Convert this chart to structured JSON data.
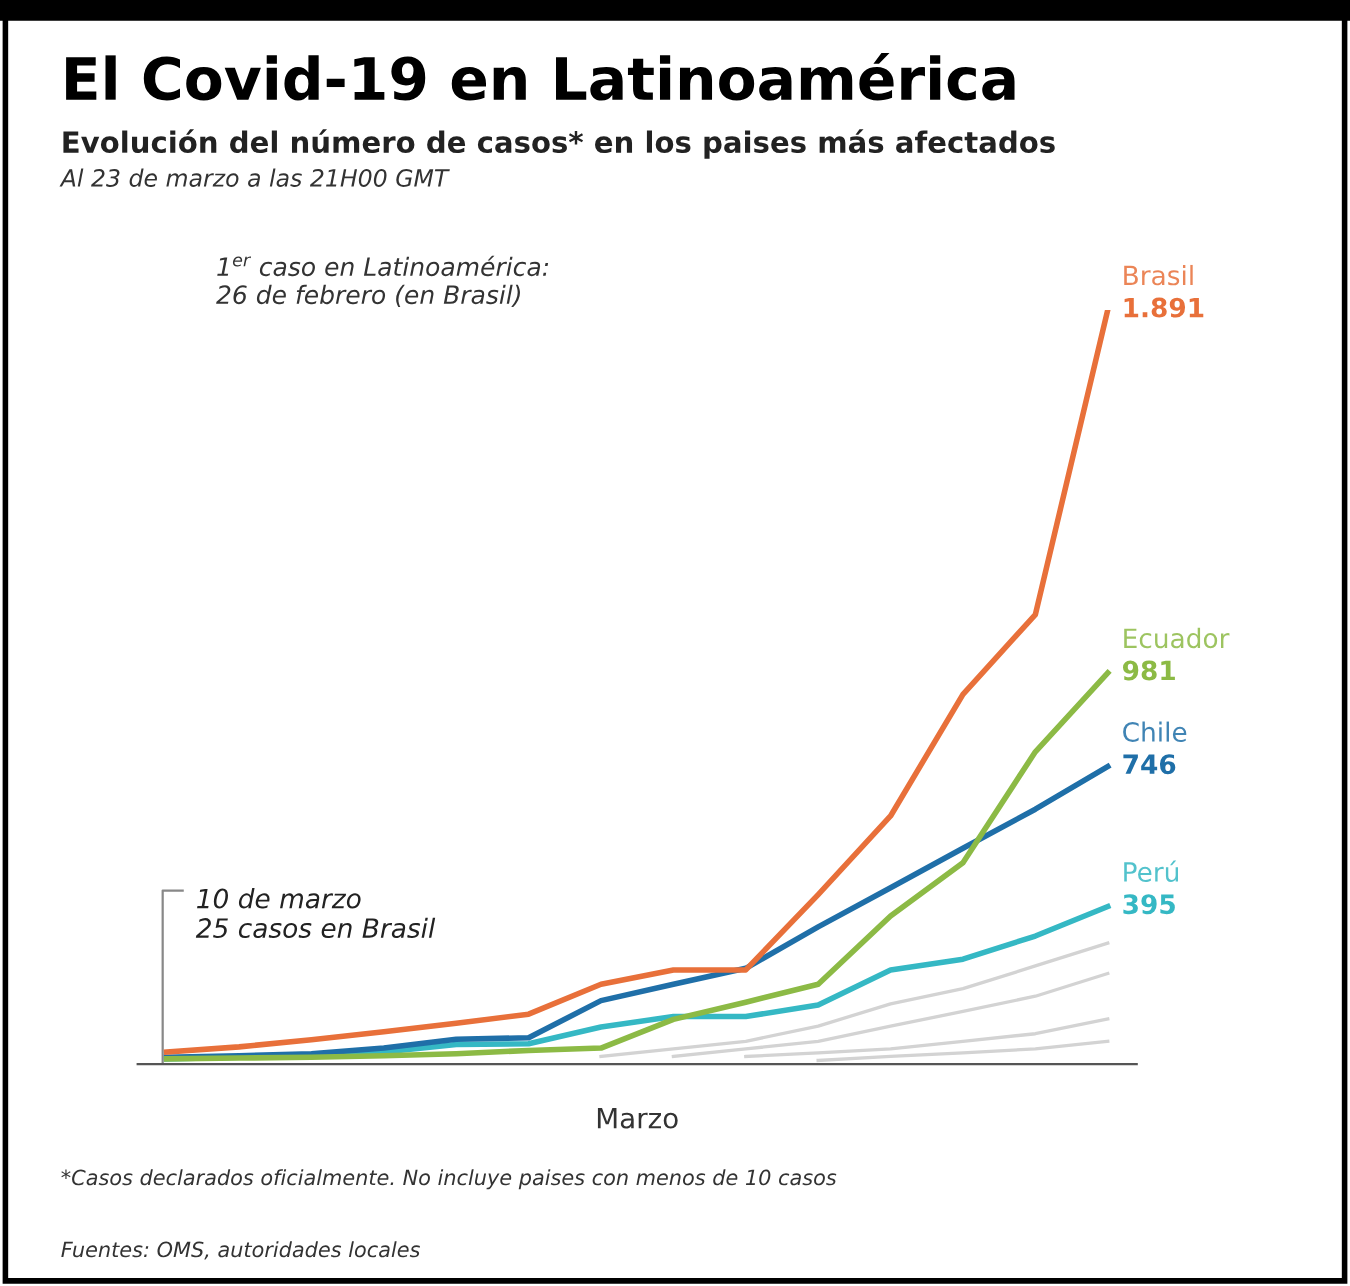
{
  "chart_data": {
    "type": "line",
    "title": "El Covid-19 en Latinoamérica",
    "subtitle": "Evolución del número de casos* en los paises más afectados",
    "xlabel": "Marzo",
    "categories": [
      null,
      null,
      null,
      null,
      null,
      null,
      null,
      null,
      null,
      null,
      null,
      null,
      null,
      null
    ],
    "series": [
      {
        "name": "Brasil",
        "color": "#e8703a",
        "values": [
          30,
          43,
          61,
          81,
          102,
          125,
          200,
          236,
          236,
          425,
          622,
          927,
          1127,
          1891
        ],
        "value_labels": [
          null,
          null,
          null,
          null,
          null,
          null,
          null,
          null,
          null,
          null,
          null,
          null,
          null,
          "1.891"
        ]
      },
      {
        "name": "Ecuador",
        "color": "#8cba45",
        "values": [
          13,
          15,
          17,
          21,
          26,
          34,
          40,
          112,
          155,
          200,
          371,
          505,
          783,
          981
        ],
        "value_labels": [
          null,
          null,
          null,
          null,
          null,
          null,
          null,
          null,
          null,
          null,
          null,
          null,
          null,
          "981"
        ]
      },
      {
        "name": "Chile",
        "color": "#1f6fa8",
        "values": [
          17,
          21,
          26,
          40,
          62,
          66,
          159,
          200,
          240,
          344,
          442,
          541,
          639,
          746
        ],
        "value_labels": [
          null,
          null,
          null,
          null,
          null,
          null,
          null,
          null,
          null,
          null,
          null,
          null,
          null,
          "746"
        ]
      },
      {
        "name": "Perú",
        "color": "#35b8c4",
        "values": [
          13,
          17,
          21,
          30,
          49,
          51,
          93,
          119,
          119,
          148,
          236,
          263,
          321,
          395
        ],
        "value_labels": [
          null,
          null,
          null,
          null,
          null,
          null,
          null,
          null,
          null,
          null,
          null,
          null,
          null,
          "395"
        ]
      },
      {
        "color": "#d3d3d3",
        "values": [
          null,
          null,
          null,
          null,
          null,
          null,
          19,
          38,
          57,
          95,
          151,
          189,
          246,
          303
        ]
      },
      {
        "color": "#d3d3d3",
        "values": [
          null,
          null,
          null,
          null,
          null,
          null,
          null,
          19,
          38,
          57,
          95,
          132,
          170,
          227
        ]
      },
      {
        "color": "#d3d3d3",
        "values": [
          null,
          null,
          null,
          null,
          null,
          null,
          null,
          null,
          19,
          28,
          38,
          57,
          76,
          113
        ]
      },
      {
        "color": "#d3d3d3",
        "values": [
          null,
          null,
          null,
          null,
          null,
          null,
          null,
          null,
          null,
          9,
          19,
          28,
          38,
          57
        ]
      }
    ],
    "annotations": [
      "Al 23 de marzo a las 21H00 GMT",
      "1$^{er}$ caso en Latinoamérica:\n26 de febrero (en Brasil)",
      "10 de marzo\n25 casos en Brasil",
      "*Casos declarados oficialmente. No incluye paises con menos de 10 casos",
      "Fuentes: OMS, autoridades locales"
    ],
    "marker": "none",
    "line_style": "solid"
  }
}
